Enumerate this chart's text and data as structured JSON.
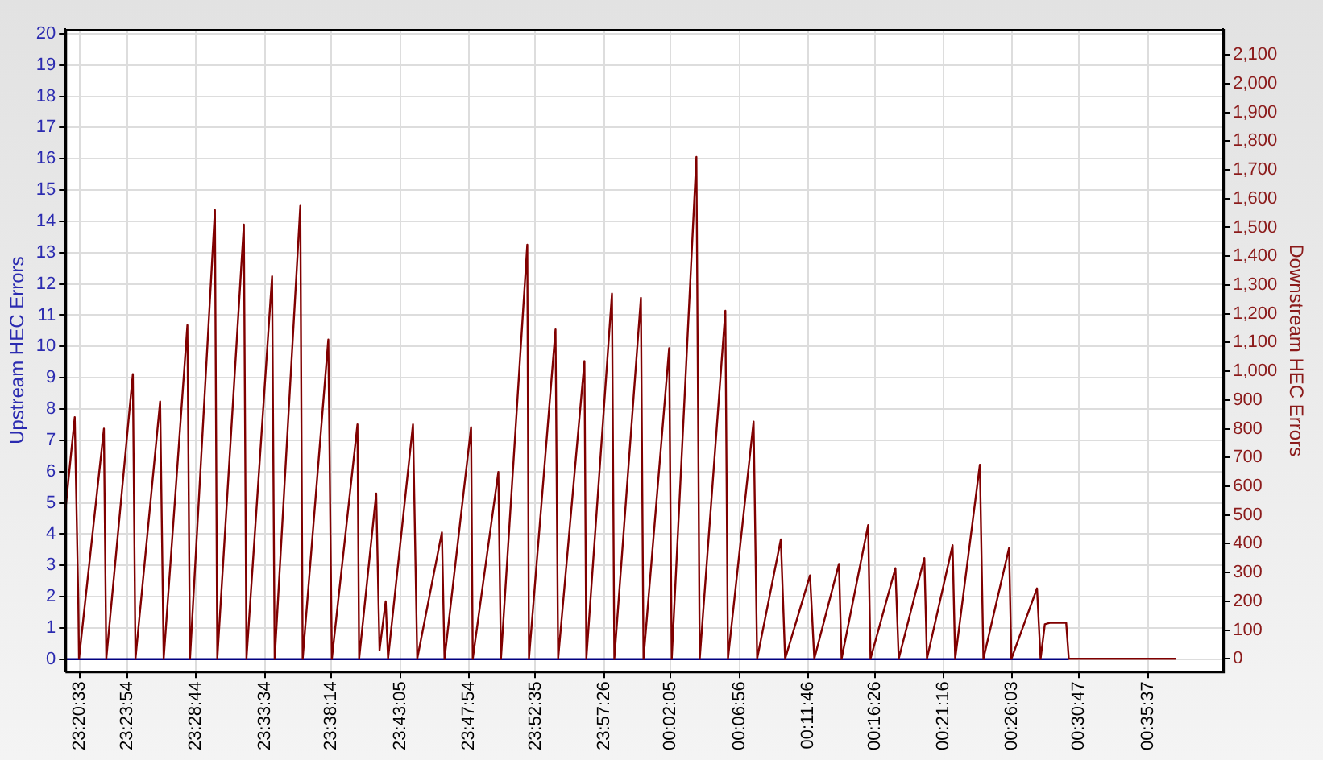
{
  "chart_data": {
    "type": "line",
    "ylabel": "Upstream HEC Errors",
    "y2label": "Downstream HEC Errors",
    "xlim": [
      "--01-01T23:19:34",
      "--01-02T00:40:55"
    ],
    "xticks": [
      {
        "value": "--01-01T23:20:33",
        "label": "23:20:33"
      },
      {
        "value": "--01-01T23:23:54",
        "label": "23:23:54"
      },
      {
        "value": "--01-01T23:28:44",
        "label": "23:28:44"
      },
      {
        "value": "--01-01T23:33:34",
        "label": "23:33:34"
      },
      {
        "value": "--01-01T23:38:14",
        "label": "23:38:14"
      },
      {
        "value": "--01-01T23:43:05",
        "label": "23:43:05"
      },
      {
        "value": "--01-01T23:47:54",
        "label": "23:47:54"
      },
      {
        "value": "--01-01T23:52:35",
        "label": "23:52:35"
      },
      {
        "value": "--01-01T23:57:26",
        "label": "23:57:26"
      },
      {
        "value": "--01-02T00:02:05",
        "label": "00:02:05"
      },
      {
        "value": "--01-02T00:06:56",
        "label": "00:06:56"
      },
      {
        "value": "--01-02T00:11:46",
        "label": "00:11:46"
      },
      {
        "value": "--01-02T00:16:26",
        "label": "00:16:26"
      },
      {
        "value": "--01-02T00:21:16",
        "label": "00:21:16"
      },
      {
        "value": "--01-02T00:26:03",
        "label": "00:26:03"
      },
      {
        "value": "--01-02T00:30:47",
        "label": "00:30:47"
      },
      {
        "value": "--01-02T00:35:37",
        "label": "00:35:37"
      }
    ],
    "ylim": [
      -0.4,
      20.15
    ],
    "yticks": [
      0,
      1,
      2,
      3,
      4,
      5,
      6,
      7,
      8,
      9,
      10,
      11,
      12,
      13,
      14,
      15,
      16,
      17,
      18,
      19,
      20
    ],
    "y2lim": [
      -45,
      2190
    ],
    "y2ticks": [
      0,
      100,
      200,
      300,
      400,
      500,
      600,
      700,
      800,
      900,
      {
        "value": 1000,
        "label": "1,000"
      },
      {
        "value": 1100,
        "label": "1,100"
      },
      {
        "value": 1200,
        "label": "1,200"
      },
      {
        "value": 1300,
        "label": "1,300"
      },
      {
        "value": 1400,
        "label": "1,400"
      },
      {
        "value": 1500,
        "label": "1,500"
      },
      {
        "value": 1600,
        "label": "1,600"
      },
      {
        "value": 1700,
        "label": "1,700"
      },
      {
        "value": 1800,
        "label": "1,800"
      },
      {
        "value": 1900,
        "label": "1,900"
      },
      {
        "value": 2000,
        "label": "2,000"
      },
      {
        "value": 2100,
        "label": "2,100"
      }
    ],
    "grid": true,
    "legend": false,
    "marker": "none",
    "series": [
      {
        "color": "#000080",
        "axis": "y",
        "x": [
          "--01-01T23:19:34",
          "--01-02T00:30:04"
        ],
        "values": [
          0,
          0
        ]
      },
      {
        "color": "#800000",
        "axis": "y2",
        "x": [
          "--01-01T23:19:34",
          "--01-01T23:20:13",
          "--01-01T23:20:28",
          "--01-01T23:20:31",
          "--01-01T23:22:16",
          "--01-01T23:22:26",
          "--01-01T23:24:18",
          "--01-01T23:24:29",
          "--01-01T23:26:13",
          "--01-01T23:26:28",
          "--01-01T23:28:08",
          "--01-01T23:28:19",
          "--01-01T23:30:04",
          "--01-01T23:30:14",
          "--01-01T23:32:06",
          "--01-01T23:32:17",
          "--01-01T23:34:05",
          "--01-01T23:34:16",
          "--01-01T23:36:04",
          "--01-01T23:36:14",
          "--01-01T23:38:02",
          "--01-01T23:38:17",
          "--01-01T23:40:05",
          "--01-01T23:40:12",
          "--01-01T23:41:24",
          "--01-01T23:41:38",
          "--01-01T23:42:04",
          "--01-01T23:42:14",
          "--01-01T23:43:59",
          "--01-01T23:44:17",
          "--01-01T23:46:01",
          "--01-01T23:46:12",
          "--01-01T23:48:04",
          "--01-01T23:48:11",
          "--01-01T23:49:59",
          "--01-01T23:50:10",
          "--01-01T23:52:01",
          "--01-01T23:52:08",
          "--01-01T23:54:00",
          "--01-01T23:54:11",
          "--01-01T23:56:02",
          "--01-01T23:56:10",
          "--01-01T23:57:58",
          "--01-01T23:58:08",
          "--01-02T00:00:00",
          "--01-02T00:00:11",
          "--01-02T00:01:59",
          "--01-02T00:02:10",
          "--01-02T00:03:54",
          "--01-02T00:04:08",
          "--01-02T00:05:56",
          "--01-02T00:06:07",
          "--01-02T00:07:55",
          "--01-02T00:08:10",
          "--01-02T00:09:50",
          "--01-02T00:10:08",
          "--01-02T00:11:53",
          "--01-02T00:12:11",
          "--01-02T00:13:55",
          "--01-02T00:14:06",
          "--01-02T00:15:58",
          "--01-02T00:16:08",
          "--01-02T00:17:53",
          "--01-02T00:18:07",
          "--01-02T00:19:55",
          "--01-02T00:20:06",
          "--01-02T00:21:54",
          "--01-02T00:22:05",
          "--01-02T00:23:49",
          "--01-02T00:24:04",
          "--01-02T00:25:52",
          "--01-02T00:26:02",
          "--01-02T00:27:50",
          "--01-02T00:28:05",
          "--01-02T00:28:23",
          "--01-02T00:28:44",
          "--01-02T00:29:53",
          "--01-02T00:30:04",
          "--01-02T00:37:34"
        ],
        "values": [
          520,
          840,
          205,
          0,
          800,
          0,
          990,
          0,
          895,
          0,
          1160,
          0,
          1560,
          0,
          1510,
          0,
          1330,
          0,
          1575,
          0,
          1110,
          0,
          815,
          0,
          575,
          30,
          200,
          0,
          815,
          0,
          440,
          0,
          805,
          0,
          650,
          0,
          1440,
          0,
          1145,
          0,
          1035,
          0,
          1270,
          0,
          1255,
          0,
          1080,
          0,
          1745,
          0,
          1210,
          0,
          825,
          0,
          415,
          0,
          290,
          0,
          330,
          0,
          465,
          0,
          315,
          0,
          350,
          0,
          395,
          0,
          675,
          0,
          385,
          0,
          245,
          0,
          120,
          125,
          125,
          0,
          0
        ]
      }
    ]
  }
}
